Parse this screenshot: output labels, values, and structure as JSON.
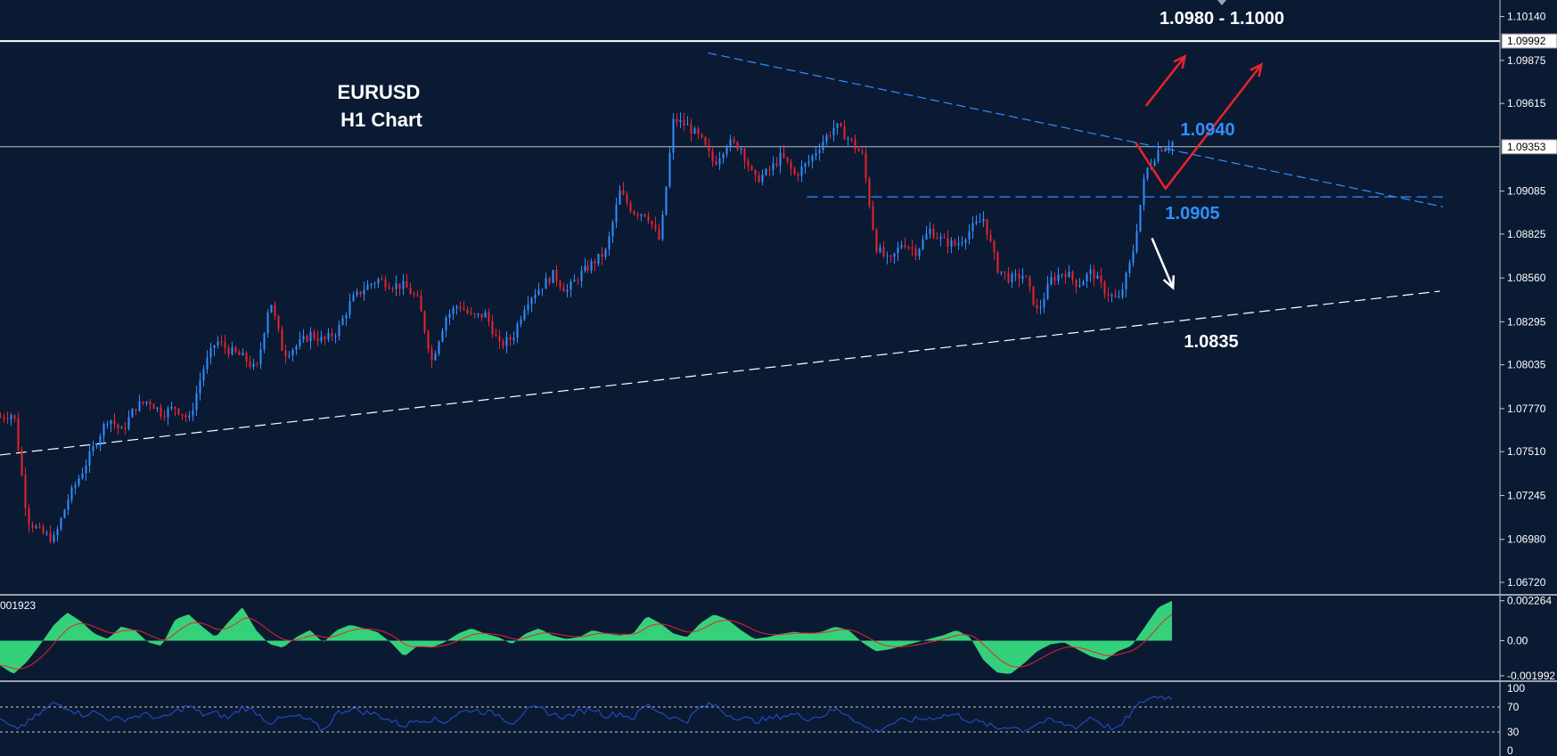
{
  "chart_data": [
    {
      "type": "candlestick",
      "title": "EURUSD",
      "subtitle": "H1 Chart",
      "ylim": [
        1.0665,
        1.1024
      ],
      "y_ticks": [
        "1.10140",
        "1.09875",
        "1.09615",
        "1.09085",
        "1.08825",
        "1.08560",
        "1.08295",
        "1.08035",
        "1.07770",
        "1.07510",
        "1.07245",
        "1.06980",
        "1.06720"
      ],
      "price_boxes": [
        "1.09992",
        "1.09353"
      ],
      "horizontal_lines": [
        1.09992,
        1.09353
      ],
      "annotations": [
        "1.0980 - 1.1000",
        "1.0940",
        "1.0905",
        "1.0835"
      ],
      "annotation_values": [
        1.099,
        1.094,
        1.0905,
        1.0835
      ],
      "series": [
        {
          "values": [
            1.0772,
            1.0774,
            1.071,
            1.0702,
            1.0698,
            1.0722,
            1.0738,
            1.0755,
            1.0772,
            1.0763,
            1.0778,
            1.0782,
            1.0774,
            1.0778,
            1.077,
            1.08,
            1.0818,
            1.0812,
            1.0808,
            1.08,
            1.0844,
            1.081,
            1.0815,
            1.0822,
            1.0818,
            1.0824,
            1.0842,
            1.085,
            1.0855,
            1.0852,
            1.0851,
            1.0842,
            1.0806,
            1.0832,
            1.084,
            1.0832,
            1.0834,
            1.0815,
            1.082,
            1.0842,
            1.085,
            1.0858,
            1.0848,
            1.0858,
            1.0865,
            1.0872,
            1.0908,
            1.0896,
            1.0895,
            1.0878,
            1.0952,
            1.0948,
            1.094,
            1.0925,
            1.0938,
            1.0935,
            1.0915,
            1.092,
            1.093,
            1.0918,
            1.0926,
            1.0938,
            1.0948,
            1.094,
            1.093,
            1.0875,
            1.0865,
            1.0878,
            1.0872,
            1.0885,
            1.0878,
            1.0876,
            1.0885,
            1.0892,
            1.0862,
            1.0855,
            1.0858,
            1.0835,
            1.0855,
            1.086,
            1.0852,
            1.086,
            1.0848,
            1.0842,
            1.0868,
            1.092,
            1.0934,
            1.0938
          ]
        }
      ],
      "trendlines": [
        {
          "name": "resistance",
          "style": "dashed",
          "color": "#2f8fff",
          "x": [
            0.472,
            0.962
          ],
          "y": [
            1.0992,
            1.0899
          ]
        },
        {
          "name": "level-1.0905",
          "style": "dashed",
          "color": "#2f8fff",
          "x": [
            0.538,
            0.962
          ],
          "y": [
            1.0905,
            1.0905
          ]
        },
        {
          "name": "support",
          "style": "dashed",
          "color": "#ffffff",
          "x": [
            0.0,
            0.96
          ],
          "y": [
            1.0749,
            1.0848
          ]
        }
      ],
      "arrows": [
        {
          "color": "#e8232d",
          "x": [
            0.764,
            0.79
          ],
          "y": [
            1.096,
            1.099
          ]
        },
        {
          "color": "#e8232d",
          "x": [
            0.757,
            0.777,
            0.841
          ],
          "y": [
            1.0938,
            1.091,
            1.0985
          ]
        },
        {
          "color": "#ffffff",
          "x": [
            0.768,
            0.782
          ],
          "y": [
            1.088,
            1.085
          ]
        }
      ],
      "macd": {
        "label": "001923",
        "y_ticks": [
          "0.002264",
          "0.00",
          "-0.001992"
        ],
        "ylim": [
          -0.00225,
          0.0025
        ],
        "histogram": [
          -0.0014,
          -0.0019,
          -0.0012,
          -0.0002,
          0.0009,
          0.0016,
          0.0011,
          0.0004,
          0.0001,
          0.0008,
          0.0006,
          -0.0001,
          -0.0003,
          0.0012,
          0.0015,
          0.0008,
          0.0002,
          0.0011,
          0.0019,
          0.0006,
          -0.0002,
          -0.0004,
          0.0002,
          0.0006,
          -0.0001,
          0.0006,
          0.0009,
          0.0007,
          0.0005,
          -0.0001,
          -0.0009,
          -0.0003,
          -0.0004,
          -0.0001,
          0.0004,
          0.0007,
          0.0004,
          0.0002,
          -0.0002,
          0.0004,
          0.0007,
          0.0003,
          0.0001,
          0.0002,
          0.0006,
          0.0004,
          0.0003,
          0.0004,
          0.0014,
          0.001,
          0.0004,
          0.0002,
          0.001,
          0.0015,
          0.0012,
          0.0006,
          0.0001,
          0.0002,
          0.0004,
          0.0005,
          0.0004,
          0.0005,
          0.0008,
          0.0006,
          -0.0001,
          -0.0006,
          -0.0005,
          -0.0003,
          -0.0001,
          0.0001,
          0.0003,
          0.0006,
          0.0002,
          -0.0011,
          -0.0018,
          -0.0019,
          -0.0013,
          -0.0006,
          -0.0002,
          -0.0001,
          -0.0005,
          -0.0009,
          -0.0011,
          -0.0006,
          -0.0003,
          0.0008,
          0.0019,
          0.00226
        ]
      },
      "rsi": {
        "y_ticks": [
          "100",
          "70",
          "30",
          "0"
        ],
        "levels": [
          70,
          30
        ],
        "ylim": [
          0,
          100
        ],
        "values": [
          50,
          34,
          44,
          60,
          76,
          70,
          58,
          62,
          52,
          50,
          55,
          58,
          50,
          62,
          72,
          58,
          60,
          52,
          70,
          62,
          45,
          52,
          55,
          48,
          32,
          60,
          68,
          62,
          58,
          48,
          40,
          50,
          50,
          46,
          60,
          66,
          62,
          58,
          44,
          64,
          68,
          58,
          54,
          62,
          68,
          56,
          60,
          52,
          74,
          62,
          52,
          48,
          70,
          74,
          58,
          52,
          48,
          50,
          56,
          58,
          52,
          56,
          66,
          58,
          40,
          30,
          42,
          48,
          50,
          52,
          56,
          58,
          48,
          44,
          35,
          40,
          32,
          44,
          48,
          42,
          38,
          55,
          40,
          34,
          62,
          82,
          88,
          84
        ]
      }
    }
  ],
  "colors": {
    "background": "#0b1a33",
    "candle_up": "#2f8fff",
    "candle_down": "#e8232d",
    "macd_hist": "#34d17a",
    "macd_signal": "#e8232d",
    "rsi_line": "#2750d6"
  }
}
